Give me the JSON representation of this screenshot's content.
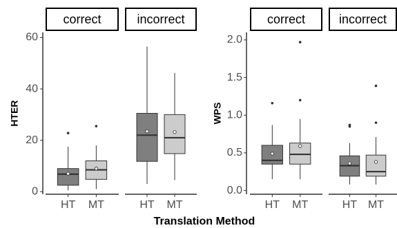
{
  "chart_data": [
    {
      "type": "boxplot",
      "ylabel": "HTER",
      "xlabel": "Translation Method",
      "ylim": [
        -1,
        62
      ],
      "yticks": [
        0,
        20,
        40,
        60
      ],
      "y_tick_labels": [
        "0",
        "20",
        "40",
        "60"
      ],
      "grid": false,
      "facets": [
        {
          "label": "correct",
          "boxes": [
            {
              "category": "HT",
              "fill": "#7f7f7f",
              "whisker_low": 0.5,
              "q1": 2.5,
              "median": 6.8,
              "q3": 9,
              "whisker_high": 17.5,
              "mean": 7,
              "outliers": [
                22.8
              ]
            },
            {
              "category": "MT",
              "fill": "#cccccc",
              "whisker_low": 1,
              "q1": 4.8,
              "median": 8.5,
              "q3": 12,
              "whisker_high": 18,
              "mean": 9,
              "outliers": [
                25.5
              ]
            }
          ]
        },
        {
          "label": "incorrect",
          "boxes": [
            {
              "category": "HT",
              "fill": "#7f7f7f",
              "whisker_low": 3,
              "q1": 11.8,
              "median": 22,
              "q3": 30.5,
              "whisker_high": 56.5,
              "mean": 23.5,
              "outliers": []
            },
            {
              "category": "MT",
              "fill": "#cccccc",
              "whisker_low": 4.5,
              "q1": 14.8,
              "median": 21,
              "q3": 30,
              "whisker_high": 46.2,
              "mean": 23.2,
              "outliers": []
            }
          ]
        }
      ]
    },
    {
      "type": "boxplot",
      "ylabel": "WPS",
      "xlabel": "Translation Method",
      "ylim": [
        -0.05,
        2.1
      ],
      "yticks": [
        0,
        0.5,
        1,
        1.5,
        2
      ],
      "y_tick_labels": [
        "0.0",
        "0.5",
        "1.0",
        "1.5",
        "2.0"
      ],
      "grid": false,
      "facets": [
        {
          "label": "correct",
          "boxes": [
            {
              "category": "HT",
              "fill": "#7f7f7f",
              "whisker_low": 0.15,
              "q1": 0.35,
              "median": 0.4,
              "q3": 0.6,
              "whisker_high": 0.87,
              "mean": 0.49,
              "outliers": [
                1.16
              ]
            },
            {
              "category": "MT",
              "fill": "#cccccc",
              "whisker_low": 0.15,
              "q1": 0.35,
              "median": 0.48,
              "q3": 0.63,
              "whisker_high": 0.95,
              "mean": 0.59,
              "outliers": [
                1.2,
                1.97
              ]
            }
          ]
        },
        {
          "label": "incorrect",
          "boxes": [
            {
              "category": "HT",
              "fill": "#7f7f7f",
              "whisker_low": 0.08,
              "q1": 0.19,
              "median": 0.33,
              "q3": 0.46,
              "whisker_high": 0.63,
              "mean": 0.36,
              "outliers": [
                0.85,
                0.87
              ]
            },
            {
              "category": "MT",
              "fill": "#cccccc",
              "whisker_low": 0.08,
              "q1": 0.19,
              "median": 0.25,
              "q3": 0.47,
              "whisker_high": 0.71,
              "mean": 0.38,
              "outliers": [
                0.9,
                1.39
              ]
            }
          ]
        }
      ]
    }
  ]
}
